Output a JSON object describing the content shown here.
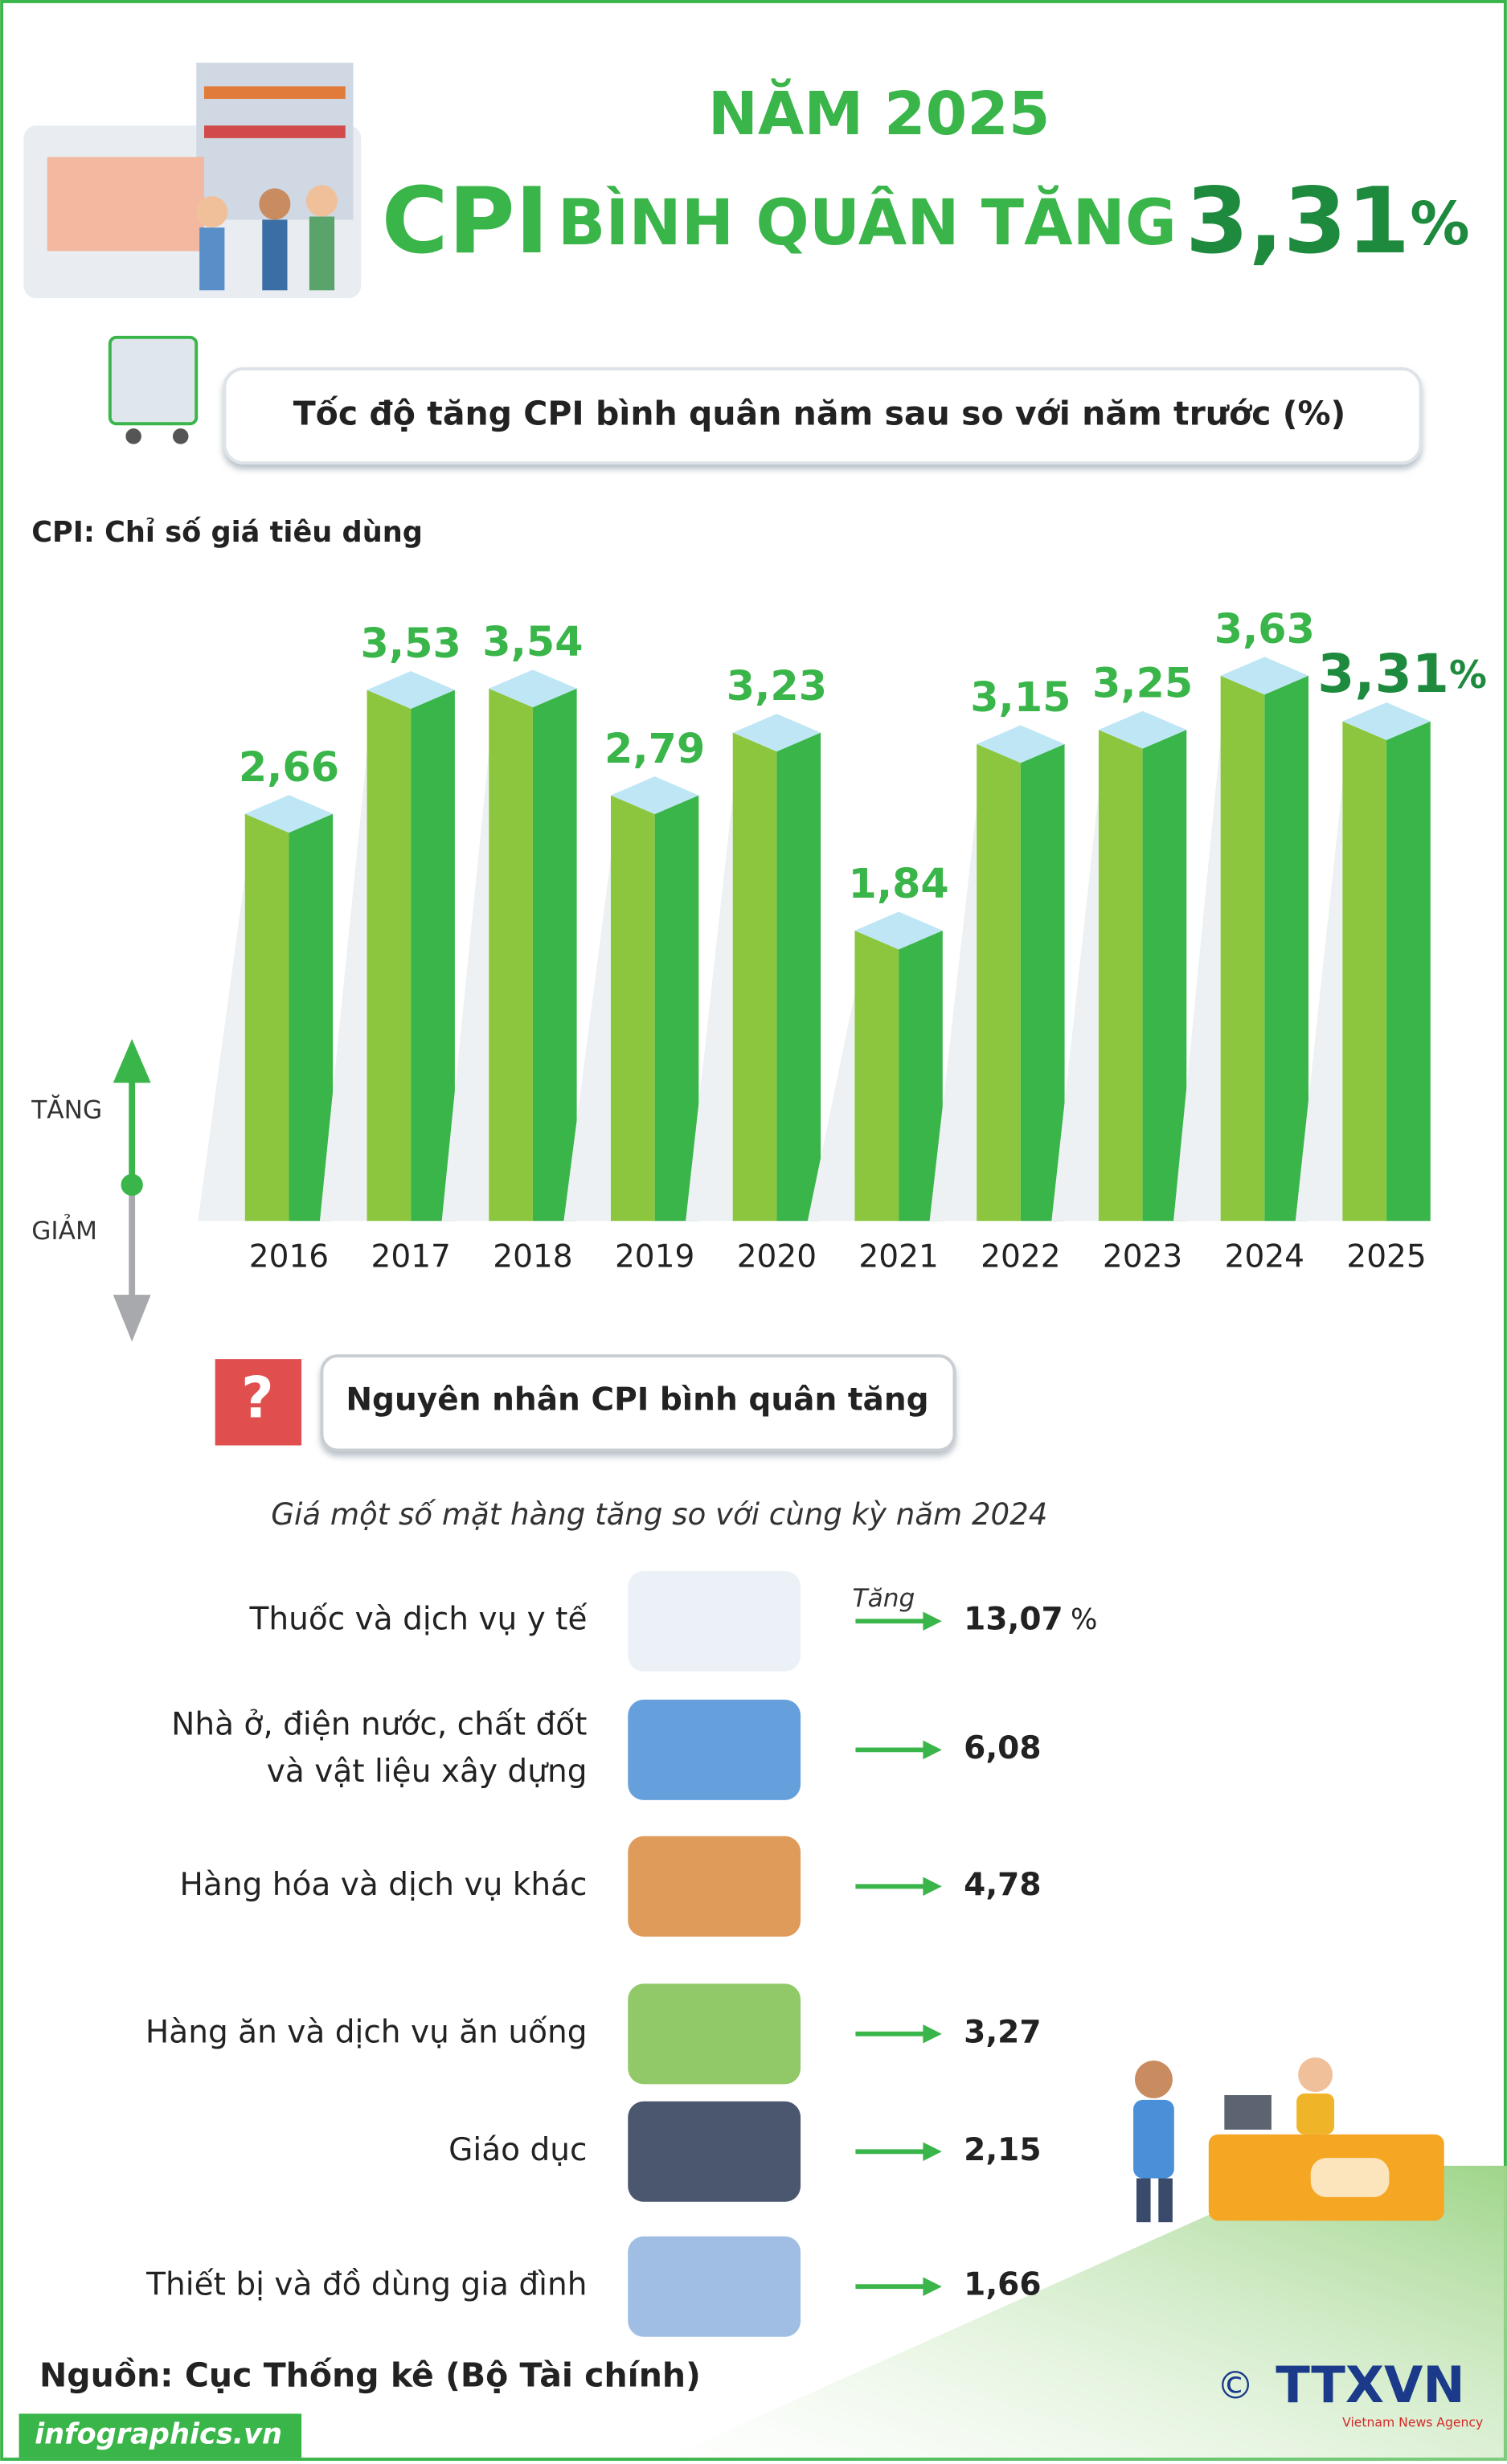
{
  "header": {
    "line1": "NĂM 2025",
    "title_prefix": "CPI",
    "title_middle": "BÌNH QUÂN TĂNG",
    "title_value": "3,31",
    "title_unit": "%"
  },
  "chart_data": {
    "type": "bar",
    "title": "Tốc độ tăng CPI bình quân năm sau so với năm trước (%)",
    "subtitle": "CPI: Chỉ số giá tiêu dùng",
    "categories": [
      "2016",
      "2017",
      "2018",
      "2019",
      "2020",
      "2021",
      "2022",
      "2023",
      "2024",
      "2025"
    ],
    "values": [
      2.66,
      3.53,
      3.54,
      2.79,
      3.23,
      1.84,
      3.15,
      3.25,
      3.63,
      3.31
    ],
    "value_labels": [
      "2,66",
      "3,53",
      "3,54",
      "2,79",
      "3,23",
      "1,84",
      "3,15",
      "3,25",
      "3,63",
      "3,31"
    ],
    "highlight_unit": "%",
    "color": "#8cc63f",
    "side_color": "#3ab54a",
    "top_color": "#bfe6f5",
    "ylim": [
      -0.2,
      4.0
    ],
    "up_label": "TĂNG",
    "down_label": "GIẢM"
  },
  "reasons": {
    "title": "Nguyên nhân CPI bình quân tăng",
    "subtitle": "Giá một số mặt hàng tăng so với cùng kỳ năm 2024",
    "increase_label": "Tăng",
    "unit": "%",
    "items": [
      {
        "label": [
          "Thuốc và dịch vụ y tế"
        ],
        "value": "13,07"
      },
      {
        "label": [
          "Nhà ở, điện nước, chất đốt",
          "và vật liệu xây dựng"
        ],
        "value": "6,08"
      },
      {
        "label": [
          "Hàng hóa và dịch vụ khác"
        ],
        "value": "4,78"
      },
      {
        "label": [
          "Hàng ăn và dịch vụ ăn uống"
        ],
        "value": "3,27"
      },
      {
        "label": [
          "Giáo dục"
        ],
        "value": "2,15"
      },
      {
        "label": [
          "Thiết bị và đồ dùng gia đình"
        ],
        "value": "1,66"
      }
    ]
  },
  "footer": {
    "source": "Nguồn: Cục Thống kê (Bộ Tài chính)",
    "site": "infographics.vn",
    "copyright": "©",
    "logo": "TTXVN",
    "agency": "Vietnam News Agency"
  }
}
